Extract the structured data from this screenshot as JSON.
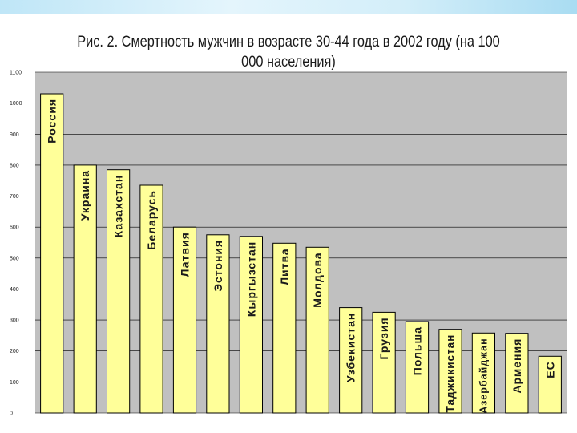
{
  "chart_data": {
    "type": "bar",
    "title": "Рис. 2. Смертность мужчин в возрасте 30-44 года в 2002 году (на 100 000 населения)",
    "categories": [
      "Россия",
      "Украина",
      "Казахстан",
      "Беларусь",
      "Латвия",
      "Эстония",
      "Кыргызстан",
      "Литва",
      "Молдова",
      "Узбекистан",
      "Грузия",
      "Польша",
      "Таджикистан",
      "Азербайджан",
      "Армения",
      "ЕС"
    ],
    "values": [
      1030,
      800,
      785,
      735,
      600,
      575,
      570,
      548,
      535,
      340,
      325,
      295,
      270,
      258,
      257,
      183
    ],
    "ylim": [
      0,
      1100
    ],
    "yticks": [
      0,
      100,
      200,
      300,
      400,
      500,
      600,
      700,
      800,
      900,
      1000,
      1100
    ],
    "grid": true,
    "legend": "none",
    "bar_color": "#ffff99",
    "bar_border_color": "#000000",
    "plot_background": "#c0c0c0"
  }
}
